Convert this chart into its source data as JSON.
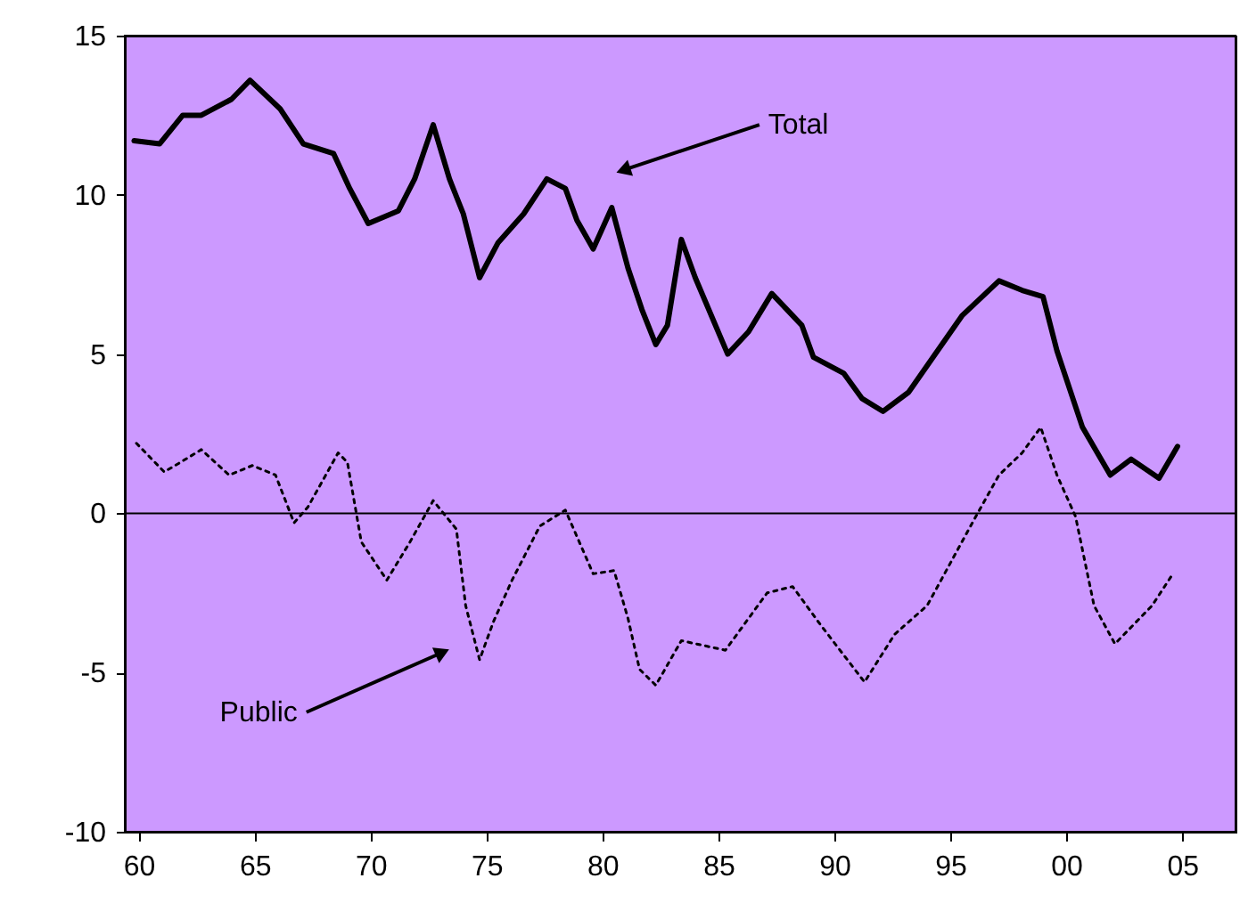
{
  "chart_data": {
    "type": "line",
    "xlim": [
      1959.4,
      2007.3
    ],
    "xticks": [
      {
        "value": 1960,
        "label": "60"
      },
      {
        "value": 1965,
        "label": "65"
      },
      {
        "value": 1970,
        "label": "70"
      },
      {
        "value": 1975,
        "label": "75"
      },
      {
        "value": 1980,
        "label": "80"
      },
      {
        "value": 1985,
        "label": "85"
      },
      {
        "value": 1990,
        "label": "90"
      },
      {
        "value": 1995,
        "label": "95"
      },
      {
        "value": 2000,
        "label": "00"
      },
      {
        "value": 2005,
        "label": "05"
      }
    ],
    "ylim": [
      -10,
      15
    ],
    "yticks": [
      -10,
      -5,
      0,
      5,
      10,
      15
    ],
    "series": [
      {
        "color": "#000000",
        "line_style": "solid",
        "x": [
          1959.8,
          1960.9,
          1961.9,
          1962.7,
          1964.0,
          1964.8,
          1966.1,
          1967.1,
          1968.4,
          1969.1,
          1969.9,
          1971.2,
          1971.9,
          1972.7,
          1973.4,
          1974.0,
          1974.7,
          1975.5,
          1976.6,
          1977.6,
          1978.4,
          1978.9,
          1979.6,
          1980.4,
          1981.1,
          1981.7,
          1982.3,
          1982.8,
          1983.4,
          1984.0,
          1985.4,
          1986.3,
          1987.3,
          1988.6,
          1989.1,
          1990.4,
          1991.2,
          1992.1,
          1993.2,
          1995.5,
          1997.1,
          1998.1,
          1999.0,
          1999.6,
          2000.7,
          2001.9,
          2002.8,
          2004.0,
          2004.8
        ],
        "values": [
          11.7,
          11.6,
          12.5,
          12.5,
          13.0,
          13.6,
          12.7,
          11.6,
          11.3,
          10.2,
          9.1,
          9.5,
          10.5,
          12.2,
          10.5,
          9.4,
          7.4,
          8.5,
          9.4,
          10.5,
          10.2,
          9.2,
          8.3,
          9.6,
          7.7,
          6.4,
          5.3,
          5.9,
          8.6,
          7.4,
          5.0,
          5.7,
          6.9,
          5.9,
          4.9,
          4.4,
          3.6,
          3.2,
          3.8,
          6.2,
          7.3,
          7.0,
          6.8,
          5.1,
          2.7,
          1.2,
          1.7,
          1.1,
          2.1
        ]
      },
      {
        "color": "#000000",
        "line_style": "dotted",
        "x": [
          1959.9,
          1961.1,
          1961.8,
          1962.7,
          1963.9,
          1964.9,
          1965.9,
          1966.7,
          1967.3,
          1968.6,
          1969.0,
          1969.6,
          1970.7,
          1971.7,
          1972.7,
          1973.7,
          1974.1,
          1974.7,
          1975.3,
          1976.1,
          1977.3,
          1978.4,
          1979.0,
          1979.6,
          1980.5,
          1981.1,
          1981.6,
          1982.3,
          1983.4,
          1985.3,
          1987.1,
          1988.2,
          1989.4,
          1991.3,
          1992.6,
          1994.0,
          1996.1,
          1997.1,
          1998.1,
          1998.9,
          1999.6,
          2000.4,
          2001.2,
          2002.1,
          2003.7,
          2004.6
        ],
        "values": [
          2.2,
          1.3,
          1.6,
          2.0,
          1.2,
          1.5,
          1.2,
          -0.3,
          0.2,
          1.9,
          1.6,
          -0.9,
          -2.1,
          -0.9,
          0.4,
          -0.5,
          -2.9,
          -4.6,
          -3.4,
          -2.1,
          -0.4,
          0.1,
          -0.9,
          -1.9,
          -1.8,
          -3.3,
          -4.9,
          -5.4,
          -4.0,
          -4.3,
          -2.5,
          -2.3,
          -3.5,
          -5.3,
          -3.8,
          -2.9,
          -0.1,
          1.2,
          1.9,
          2.7,
          1.2,
          -0.1,
          -2.9,
          -4.1,
          -2.9,
          -1.9
        ]
      }
    ],
    "ref_lines": [
      {
        "axis": "y",
        "value": 0,
        "color": "#000000",
        "line_style": "solid"
      }
    ],
    "annotations": [
      {
        "text": "Total",
        "x": 1981.0,
        "y": 10.8
      },
      {
        "text": "Public",
        "x": 1973.0,
        "y": -4.4
      }
    ]
  }
}
